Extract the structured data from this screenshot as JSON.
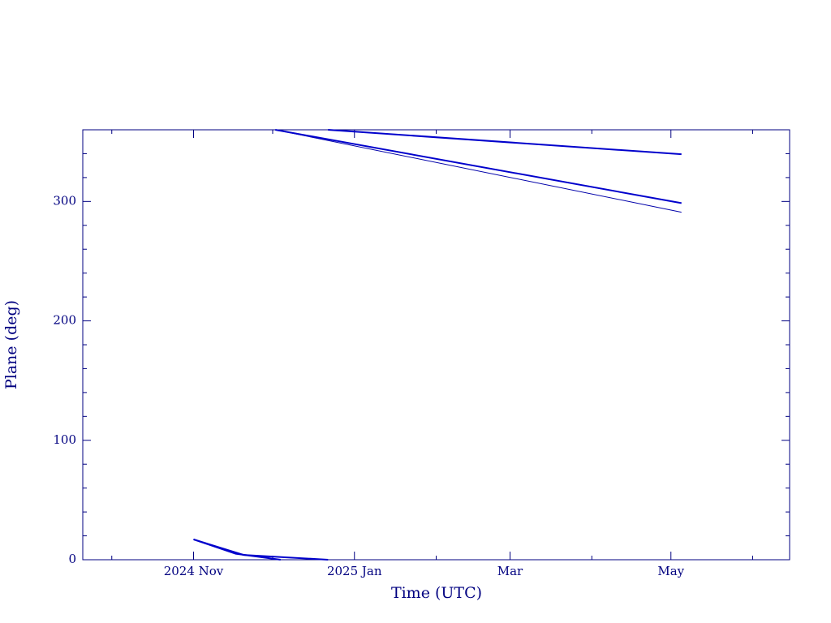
{
  "chart_data": {
    "type": "line",
    "xlabel": "Time (UTC)",
    "ylabel": "Plane (deg)",
    "xlim": [
      "2024-09-20",
      "2025-06-15"
    ],
    "ylim": [
      0,
      360
    ],
    "xticks": [
      {
        "value": "2024-11-01",
        "label": "2024 Nov"
      },
      {
        "value": "2025-01-01",
        "label": "2025 Jan"
      },
      {
        "value": "2025-03-01",
        "label": "Mar"
      },
      {
        "value": "2025-05-01",
        "label": "May"
      }
    ],
    "xminor_ticks": [
      "2024-10-01",
      "2024-12-01",
      "2025-02-01",
      "2025-04-01",
      "2025-06-01"
    ],
    "yticks": [
      0,
      100,
      200,
      300
    ],
    "yminor_ticks": [
      20,
      40,
      60,
      80,
      120,
      140,
      160,
      180,
      220,
      240,
      260,
      280,
      320,
      340
    ],
    "series": [
      {
        "color": "#0000aa",
        "x": [
          "2024-11-01",
          "2024-11-17",
          "2024-12-04",
          "2024-12-04",
          "2024-12-02",
          "2025-05-05"
        ],
        "values": [
          17,
          5,
          0,
          null,
          360,
          291
        ]
      },
      {
        "color": "#0000cc",
        "x": [
          "2024-11-01",
          "2024-11-17",
          "2024-12-04",
          "2024-12-04",
          "2024-12-02",
          "2025-05-05"
        ],
        "values": [
          17,
          5,
          0,
          null,
          360,
          298.6
        ]
      },
      {
        "color": "#0000cc",
        "x": [
          "2024-11-01",
          "2024-11-20",
          "2024-12-22",
          "2024-12-22",
          "2024-12-22",
          "2025-05-05"
        ],
        "values": [
          17,
          4,
          0,
          null,
          360,
          339.5
        ]
      }
    ]
  }
}
